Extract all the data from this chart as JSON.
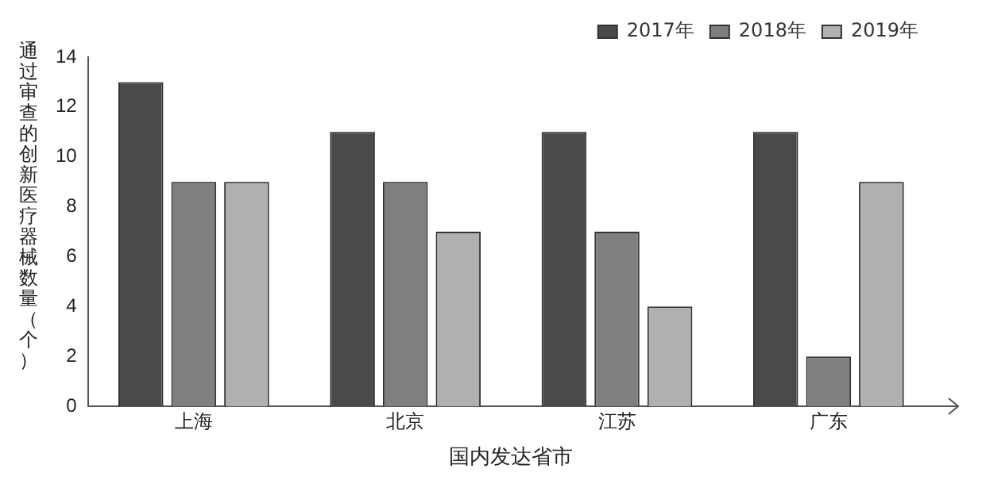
{
  "chart_data": {
    "type": "bar",
    "xlabel": "国内发达省市",
    "ylabel": "通过审查的创新医疗器械数量（个）",
    "categories": [
      "上海",
      "北京",
      "江苏",
      "广东"
    ],
    "series": [
      {
        "name": "2017年",
        "color": "#4a4a4a",
        "values": [
          13,
          11,
          11,
          11
        ]
      },
      {
        "name": "2018年",
        "color": "#7f7f7f",
        "values": [
          9,
          9,
          7,
          2
        ]
      },
      {
        "name": "2019年",
        "color": "#b0b0b0",
        "values": [
          9,
          7,
          4,
          9
        ]
      }
    ],
    "ylim": [
      0,
      14
    ],
    "yticks": [
      0,
      2,
      4,
      6,
      8,
      10,
      12,
      14
    ],
    "grid": false,
    "legend": "top right"
  }
}
